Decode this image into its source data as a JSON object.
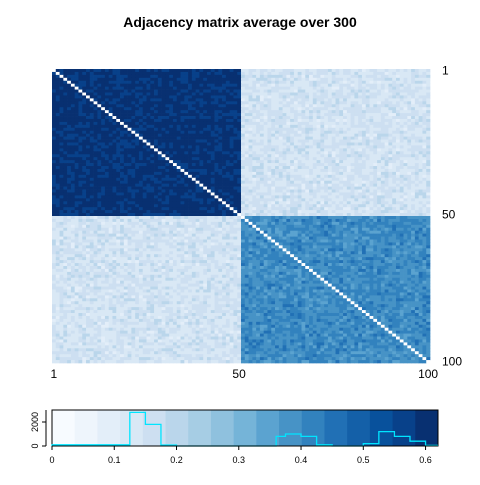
{
  "chart_data": [
    {
      "type": "heatmap",
      "title": "Adjacency matrix average over 300",
      "n": 100,
      "x_ticks": [
        "1",
        "50",
        "100"
      ],
      "y_ticks": [
        "1",
        "50",
        "100"
      ],
      "diagonal_value": 0,
      "blocks": [
        {
          "rows": [
            1,
            50
          ],
          "cols": [
            1,
            50
          ],
          "value": 0.6
        },
        {
          "rows": [
            1,
            50
          ],
          "cols": [
            51,
            100
          ],
          "value": 0.15
        },
        {
          "rows": [
            51,
            100
          ],
          "cols": [
            1,
            50
          ],
          "value": 0.15
        },
        {
          "rows": [
            51,
            100
          ],
          "cols": [
            51,
            100
          ],
          "value": 0.4
        }
      ],
      "palette": [
        "#f7fbff",
        "#eef5fc",
        "#e3eef9",
        "#d9e8f5",
        "#cddff1",
        "#bad6eb",
        "#a6cde4",
        "#8fc1de",
        "#75b4d8",
        "#5ba3d0",
        "#4793c6",
        "#3282be",
        "#2170b5",
        "#1460a8",
        "#08519c",
        "#08418a",
        "#083071"
      ],
      "range": [
        0,
        0.62
      ]
    },
    {
      "type": "histogram",
      "xlim": [
        0,
        0.62
      ],
      "x_ticks": [
        "0",
        "0.1",
        "0.2",
        "0.3",
        "0.4",
        "0.5",
        "0.6"
      ],
      "y_ticks": [
        "0",
        "2000"
      ],
      "ylim": [
        0,
        3000
      ],
      "line_color": "#00e5ff",
      "bins": [
        {
          "x0": 0.0,
          "x1": 0.1,
          "count": 100
        },
        {
          "x0": 0.1,
          "x1": 0.125,
          "count": 100
        },
        {
          "x0": 0.125,
          "x1": 0.15,
          "count": 2800
        },
        {
          "x0": 0.15,
          "x1": 0.175,
          "count": 1800
        },
        {
          "x0": 0.175,
          "x1": 0.2,
          "count": 80
        },
        {
          "x0": 0.2,
          "x1": 0.36,
          "count": 0
        },
        {
          "x0": 0.36,
          "x1": 0.375,
          "count": 800
        },
        {
          "x0": 0.375,
          "x1": 0.4,
          "count": 1000
        },
        {
          "x0": 0.4,
          "x1": 0.425,
          "count": 800
        },
        {
          "x0": 0.425,
          "x1": 0.45,
          "count": 100
        },
        {
          "x0": 0.45,
          "x1": 0.5,
          "count": 0
        },
        {
          "x0": 0.5,
          "x1": 0.525,
          "count": 200
        },
        {
          "x0": 0.525,
          "x1": 0.55,
          "count": 1200
        },
        {
          "x0": 0.55,
          "x1": 0.575,
          "count": 800
        },
        {
          "x0": 0.575,
          "x1": 0.6,
          "count": 400
        },
        {
          "x0": 0.6,
          "x1": 0.62,
          "count": 50
        }
      ]
    }
  ]
}
